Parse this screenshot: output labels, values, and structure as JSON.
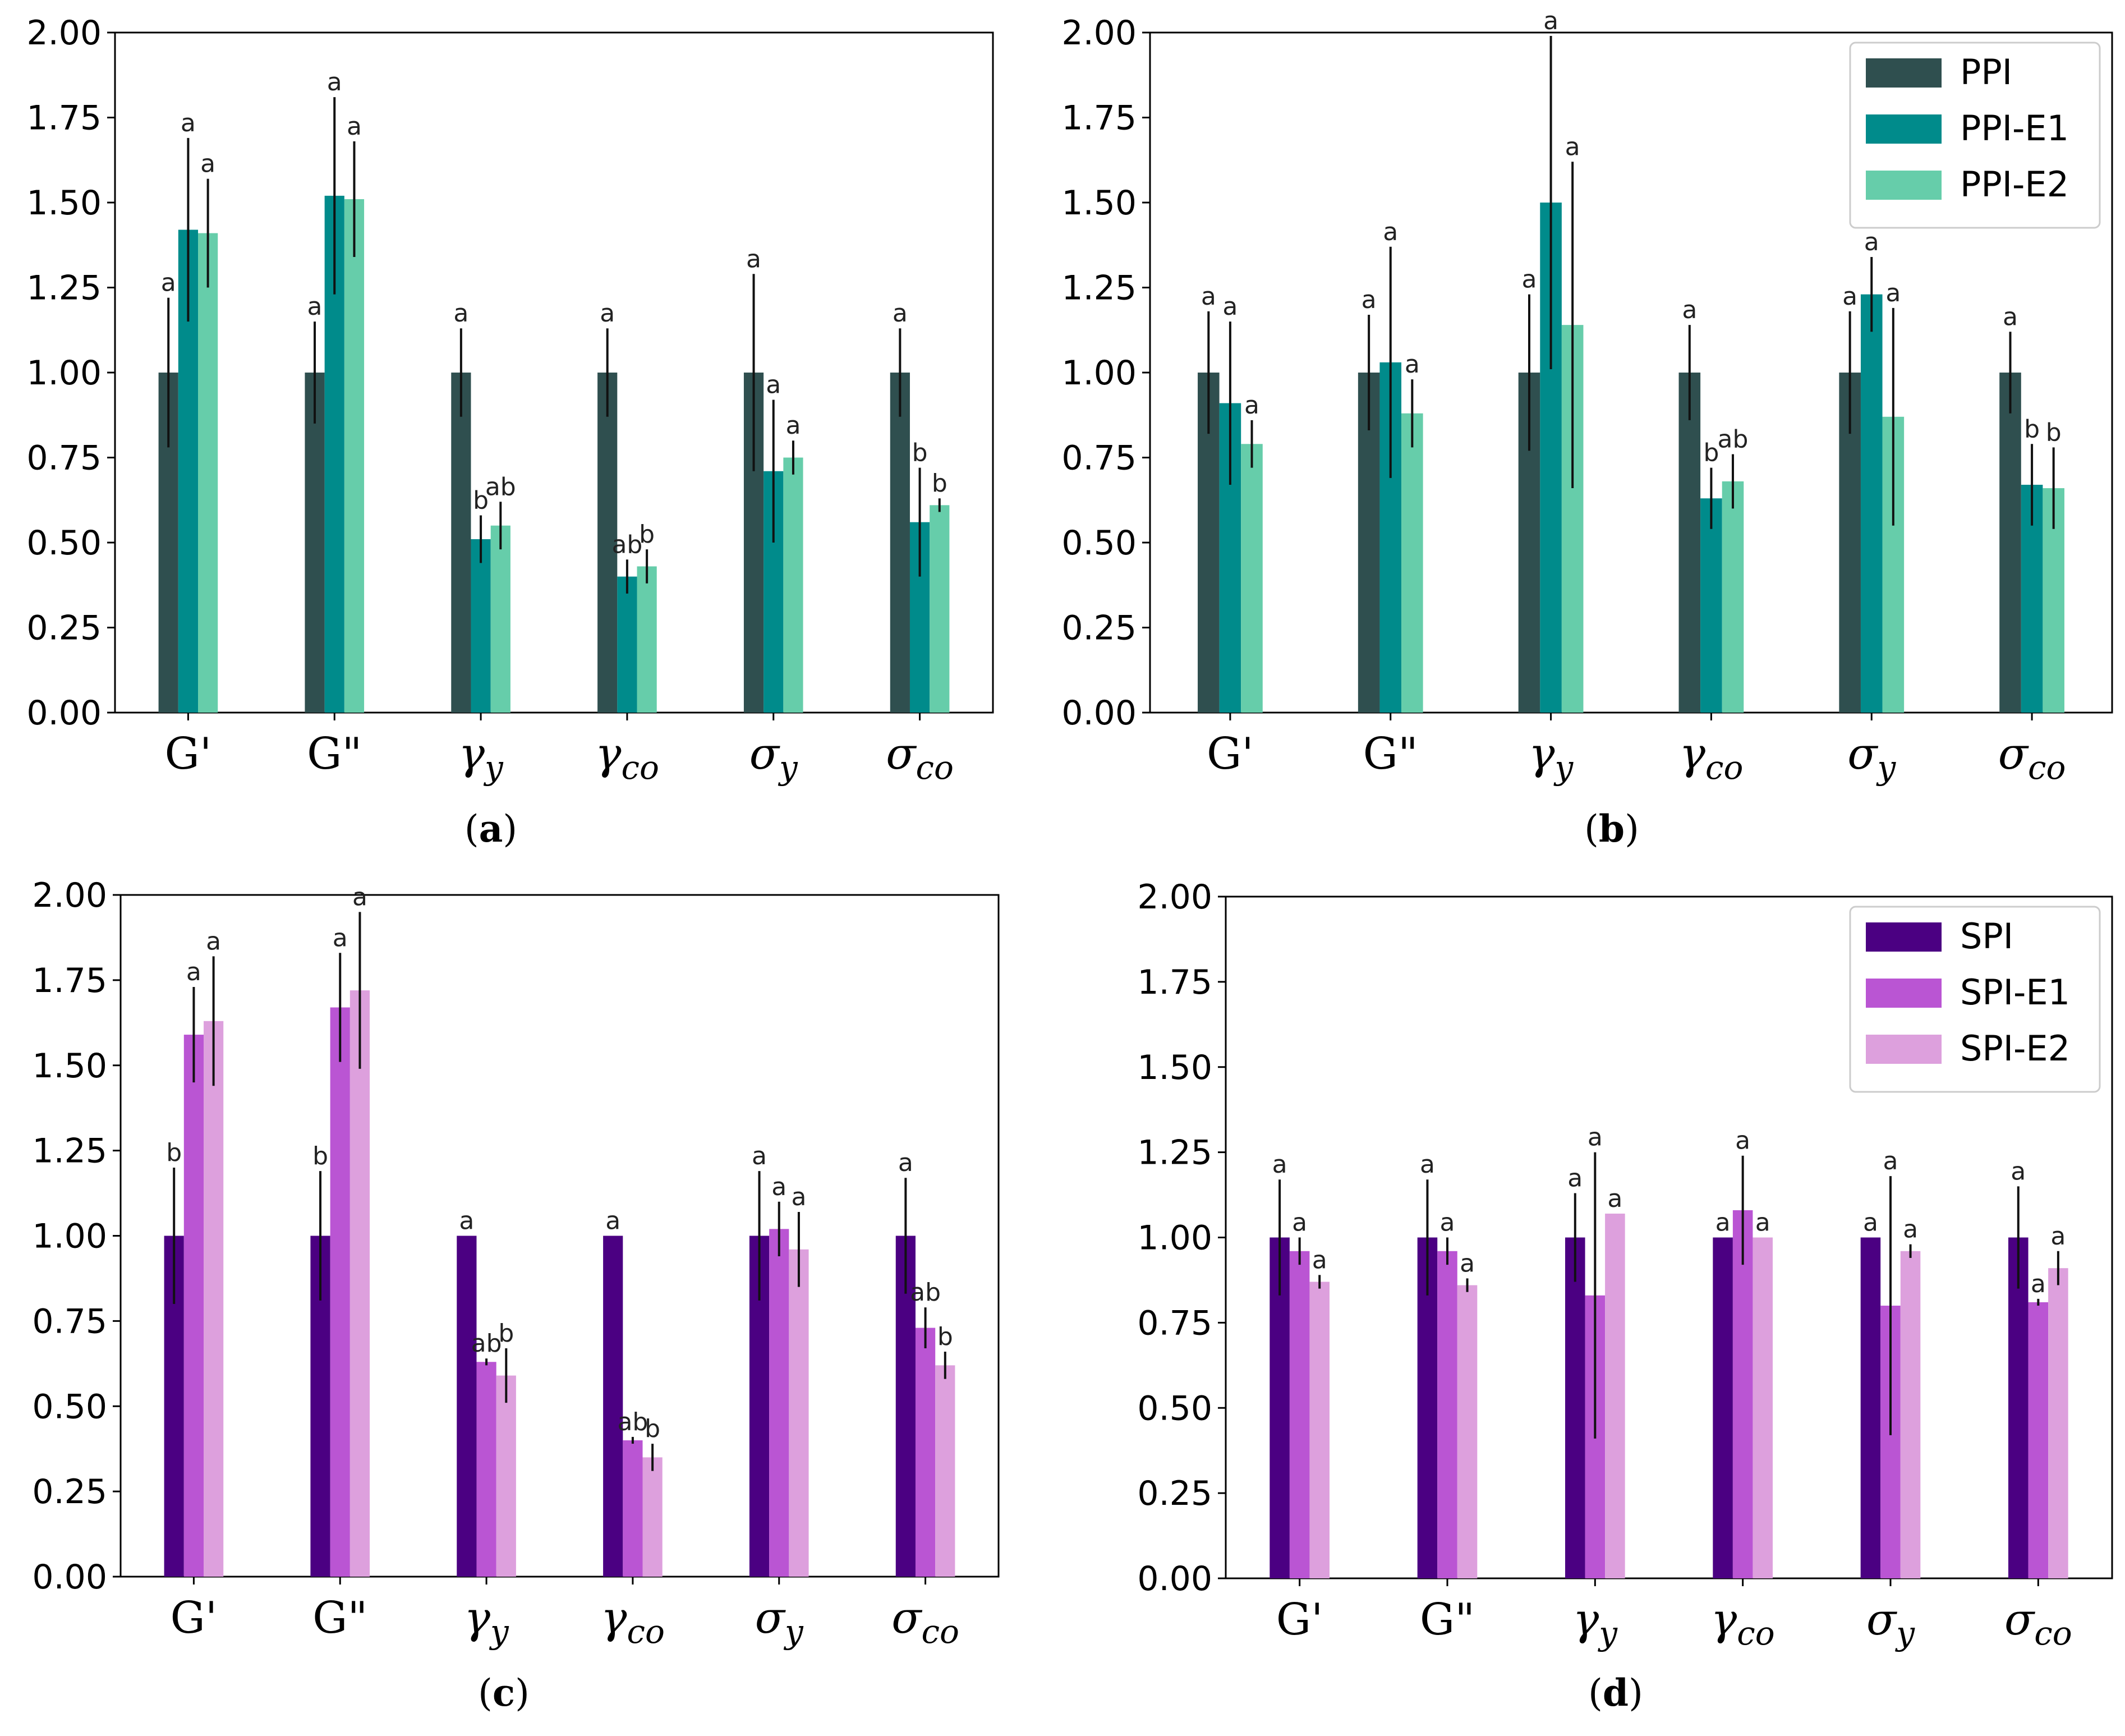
{
  "chart_data": [
    {
      "panel": "a",
      "type": "bar",
      "categories": [
        "G'",
        "G\"",
        "γy",
        "γco",
        "σy",
        "σco"
      ],
      "ylim": [
        0,
        2.0
      ],
      "yticks": [
        "0.00",
        "0.25",
        "0.50",
        "0.75",
        "1.00",
        "1.25",
        "1.50",
        "1.75",
        "2.00"
      ],
      "legend": null,
      "series": [
        {
          "color": "#2f4f4f",
          "values": [
            1.0,
            1.0,
            1.0,
            1.0,
            1.0,
            1.0
          ],
          "errors": [
            0.22,
            0.15,
            0.13,
            0.13,
            0.29,
            0.13
          ],
          "labels": [
            "a",
            "a",
            "a",
            "a",
            "a",
            "a"
          ]
        },
        {
          "color": "#008b8b",
          "values": [
            1.42,
            1.52,
            0.51,
            0.4,
            0.71,
            0.56
          ],
          "errors": [
            0.27,
            0.29,
            0.07,
            0.05,
            0.21,
            0.16
          ],
          "labels": [
            "a",
            "a",
            "b",
            "ab",
            "a",
            "b"
          ]
        },
        {
          "color": "#66cdaa",
          "values": [
            1.41,
            1.51,
            0.55,
            0.43,
            0.75,
            0.61
          ],
          "errors": [
            0.16,
            0.17,
            0.07,
            0.05,
            0.05,
            0.02
          ],
          "labels": [
            "a",
            "a",
            "ab",
            "b",
            "a",
            "b"
          ]
        }
      ]
    },
    {
      "panel": "b",
      "type": "bar",
      "categories": [
        "G'",
        "G\"",
        "γy",
        "γco",
        "σy",
        "σco"
      ],
      "ylim": [
        0,
        2.0
      ],
      "yticks": [
        "0.00",
        "0.25",
        "0.50",
        "0.75",
        "1.00",
        "1.25",
        "1.50",
        "1.75",
        "2.00"
      ],
      "legend": {
        "position": "top-right",
        "entries": [
          "PPI",
          "PPI-E1",
          "PPI-E2"
        ]
      },
      "series": [
        {
          "name": "PPI",
          "color": "#2f4f4f",
          "values": [
            1.0,
            1.0,
            1.0,
            1.0,
            1.0,
            1.0
          ],
          "errors": [
            0.18,
            0.17,
            0.23,
            0.14,
            0.18,
            0.12
          ],
          "labels": [
            "a",
            "a",
            "a",
            "a",
            "a",
            "a"
          ]
        },
        {
          "name": "PPI-E1",
          "color": "#008b8b",
          "values": [
            0.91,
            1.03,
            1.5,
            0.63,
            1.23,
            0.67
          ],
          "errors": [
            0.24,
            0.34,
            0.49,
            0.09,
            0.11,
            0.12
          ],
          "labels": [
            "a",
            "a",
            "a",
            "b",
            "a",
            "b"
          ]
        },
        {
          "name": "PPI-E2",
          "color": "#66cdaa",
          "values": [
            0.79,
            0.88,
            1.14,
            0.68,
            0.87,
            0.66
          ],
          "errors": [
            0.07,
            0.1,
            0.48,
            0.08,
            0.32,
            0.12
          ],
          "labels": [
            "a",
            "a",
            "a",
            "ab",
            "a",
            "b"
          ]
        }
      ]
    },
    {
      "panel": "c",
      "type": "bar",
      "categories": [
        "G'",
        "G\"",
        "γy",
        "γco",
        "σy",
        "σco"
      ],
      "ylim": [
        0,
        2.0
      ],
      "yticks": [
        "0.00",
        "0.25",
        "0.50",
        "0.75",
        "1.00",
        "1.25",
        "1.50",
        "1.75",
        "2.00"
      ],
      "legend": null,
      "series": [
        {
          "color": "#4b0082",
          "values": [
            1.0,
            1.0,
            1.0,
            1.0,
            1.0,
            1.0
          ],
          "errors": [
            0.2,
            0.19,
            0.0,
            0.0,
            0.19,
            0.17
          ],
          "labels": [
            "b",
            "b",
            "a",
            "a",
            "a",
            "a"
          ]
        },
        {
          "color": "#ba55d3",
          "values": [
            1.59,
            1.67,
            0.63,
            0.4,
            1.02,
            0.73
          ],
          "errors": [
            0.14,
            0.16,
            0.01,
            0.01,
            0.08,
            0.06
          ],
          "labels": [
            "a",
            "a",
            "ab",
            "ab",
            "a",
            "ab"
          ]
        },
        {
          "color": "#dda0dd",
          "values": [
            1.63,
            1.72,
            0.59,
            0.35,
            0.96,
            0.62
          ],
          "errors": [
            0.19,
            0.23,
            0.08,
            0.04,
            0.11,
            0.04
          ],
          "labels": [
            "a",
            "a",
            "b",
            "b",
            "a",
            "b"
          ]
        }
      ]
    },
    {
      "panel": "d",
      "type": "bar",
      "categories": [
        "G'",
        "G\"",
        "γy",
        "γco",
        "σy",
        "σco"
      ],
      "ylim": [
        0,
        2.0
      ],
      "yticks": [
        "0.00",
        "0.25",
        "0.50",
        "0.75",
        "1.00",
        "1.25",
        "1.50",
        "1.75",
        "2.00"
      ],
      "legend": {
        "position": "top-right",
        "entries": [
          "SPI",
          "SPI-E1",
          "SPI-E2"
        ]
      },
      "series": [
        {
          "name": "SPI",
          "color": "#4b0082",
          "values": [
            1.0,
            1.0,
            1.0,
            1.0,
            1.0,
            1.0
          ],
          "errors": [
            0.17,
            0.17,
            0.13,
            0.0,
            0.0,
            0.15
          ],
          "labels": [
            "a",
            "a",
            "a",
            "a",
            "a",
            "a"
          ]
        },
        {
          "name": "SPI-E1",
          "color": "#ba55d3",
          "values": [
            0.96,
            0.96,
            0.83,
            1.08,
            0.8,
            0.81
          ],
          "errors": [
            0.04,
            0.04,
            0.42,
            0.16,
            0.38,
            0.01
          ],
          "labels": [
            "a",
            "a",
            "a",
            "a",
            "a",
            "a"
          ]
        },
        {
          "name": "SPI-E2",
          "color": "#dda0dd",
          "values": [
            0.87,
            0.86,
            1.07,
            1.0,
            0.96,
            0.91
          ],
          "errors": [
            0.02,
            0.02,
            0.0,
            0.0,
            0.02,
            0.05
          ],
          "labels": [
            "a",
            "a",
            "a",
            "a",
            "a",
            "a"
          ]
        }
      ]
    }
  ],
  "captions": [
    "(a)",
    "(b)",
    "(c)",
    "(d)"
  ]
}
